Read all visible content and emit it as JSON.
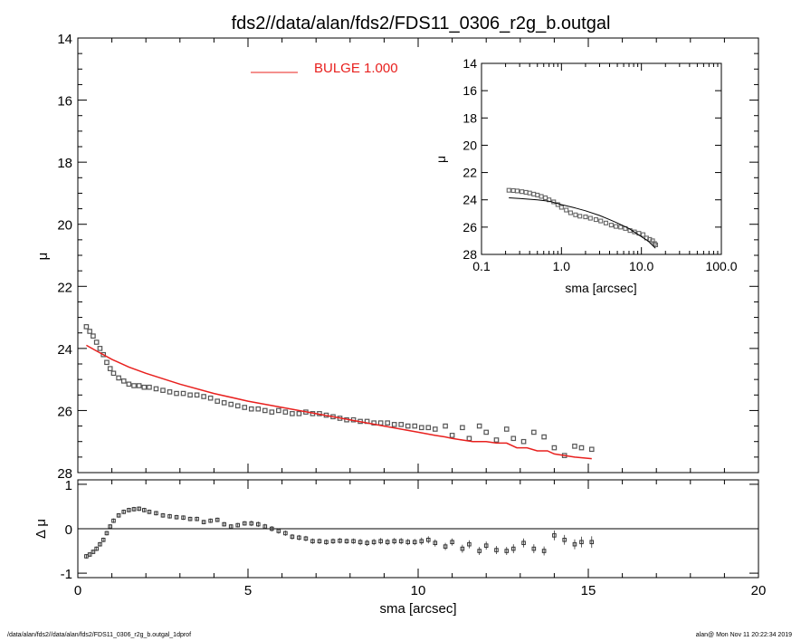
{
  "title": "fds2//data/alan/fds2/FDS11_0306_r2g_b.outgal",
  "footer_left": "/data/alan/fds2//data/alan/fds2/FDS11_0306_r2g_b.outgal_1dprof",
  "footer_right": "alan@  Mon Nov 11 20:22:34 2019",
  "colors": {
    "model": "#e8201e",
    "data": "#555555",
    "axes": "#000000"
  },
  "chart_data": [
    {
      "panel": "main",
      "type": "scatter",
      "xlabel": "sma [arcsec]",
      "ylabel": "μ",
      "xlim": [
        0,
        20
      ],
      "ylim": [
        28,
        14
      ],
      "xticks": [
        "0",
        "5",
        "10",
        "15",
        "20"
      ],
      "yticks": [
        "14",
        "16",
        "18",
        "20",
        "22",
        "24",
        "26",
        "28"
      ],
      "legend": {
        "label": "BULGE  1.000",
        "placement": "top-left"
      },
      "series": [
        {
          "kind": "points",
          "x": [
            0.25,
            0.35,
            0.45,
            0.55,
            0.65,
            0.75,
            0.85,
            0.95,
            1.05,
            1.2,
            1.35,
            1.5,
            1.65,
            1.8,
            1.95,
            2.1,
            2.3,
            2.5,
            2.7,
            2.9,
            3.1,
            3.3,
            3.5,
            3.7,
            3.9,
            4.1,
            4.3,
            4.5,
            4.7,
            4.9,
            5.1,
            5.3,
            5.5,
            5.7,
            5.9,
            6.1,
            6.3,
            6.5,
            6.7,
            6.9,
            7.1,
            7.3,
            7.5,
            7.7,
            7.9,
            8.1,
            8.3,
            8.5,
            8.7,
            8.9,
            9.1,
            9.3,
            9.5,
            9.7,
            9.9,
            10.1,
            10.3,
            10.5,
            10.8,
            11.0,
            11.3,
            11.5,
            11.8,
            12.0,
            12.3,
            12.6,
            12.8,
            13.1,
            13.4,
            13.7,
            14.0,
            14.3,
            14.6,
            14.8,
            15.1
          ],
          "y": [
            23.3,
            23.45,
            23.6,
            23.8,
            24.0,
            24.2,
            24.45,
            24.65,
            24.8,
            24.95,
            25.05,
            25.15,
            25.2,
            25.2,
            25.25,
            25.25,
            25.3,
            25.35,
            25.4,
            25.45,
            25.45,
            25.5,
            25.5,
            25.55,
            25.6,
            25.7,
            25.75,
            25.8,
            25.85,
            25.9,
            25.95,
            25.95,
            26.0,
            26.05,
            26.0,
            26.05,
            26.1,
            26.1,
            26.05,
            26.1,
            26.1,
            26.15,
            26.2,
            26.25,
            26.3,
            26.3,
            26.35,
            26.35,
            26.4,
            26.4,
            26.4,
            26.45,
            26.45,
            26.5,
            26.5,
            26.55,
            26.55,
            26.6,
            26.5,
            26.8,
            26.55,
            26.9,
            26.5,
            26.7,
            26.95,
            26.6,
            26.9,
            27.0,
            26.7,
            26.85,
            27.2,
            27.45,
            27.15,
            27.2,
            27.25
          ]
        },
        {
          "kind": "line",
          "name": "BULGE  1.000",
          "x": [
            0.25,
            0.5,
            1.0,
            1.5,
            2.0,
            3.0,
            4.0,
            5.0,
            6.0,
            7.0,
            8.0,
            9.0,
            10.0,
            10.5,
            10.8,
            11.0,
            11.3,
            11.6,
            12.0,
            12.3,
            12.6,
            12.9,
            13.2,
            13.5,
            13.8,
            14.0,
            14.3,
            14.6,
            15.1
          ],
          "y": [
            23.9,
            24.05,
            24.35,
            24.6,
            24.8,
            25.15,
            25.45,
            25.7,
            25.9,
            26.1,
            26.3,
            26.5,
            26.7,
            26.8,
            26.85,
            26.9,
            26.95,
            27.0,
            27.0,
            27.05,
            27.05,
            27.2,
            27.2,
            27.3,
            27.3,
            27.4,
            27.45,
            27.5,
            27.55
          ]
        }
      ]
    },
    {
      "panel": "residual",
      "type": "scatter",
      "xlabel": "sma [arcsec]",
      "ylabel": "Δ μ",
      "xlim": [
        0,
        20
      ],
      "ylim": [
        -1.1,
        1.1
      ],
      "xticks": [
        "0",
        "5",
        "10",
        "15",
        "20"
      ],
      "yticks": [
        "1",
        "0",
        "-1"
      ],
      "series": [
        {
          "kind": "points_with_errors",
          "x": [
            0.25,
            0.35,
            0.45,
            0.55,
            0.65,
            0.75,
            0.85,
            0.95,
            1.05,
            1.2,
            1.35,
            1.5,
            1.65,
            1.8,
            1.95,
            2.1,
            2.3,
            2.5,
            2.7,
            2.9,
            3.1,
            3.3,
            3.5,
            3.7,
            3.9,
            4.1,
            4.3,
            4.5,
            4.7,
            4.9,
            5.1,
            5.3,
            5.5,
            5.7,
            5.9,
            6.1,
            6.3,
            6.5,
            6.7,
            6.9,
            7.1,
            7.3,
            7.5,
            7.7,
            7.9,
            8.1,
            8.3,
            8.5,
            8.7,
            8.9,
            9.1,
            9.3,
            9.5,
            9.7,
            9.9,
            10.1,
            10.3,
            10.5,
            10.8,
            11.0,
            11.3,
            11.5,
            11.8,
            12.0,
            12.3,
            12.6,
            12.8,
            13.1,
            13.4,
            13.7,
            14.0,
            14.3,
            14.6,
            14.8,
            15.1
          ],
          "y": [
            -0.62,
            -0.58,
            -0.52,
            -0.45,
            -0.35,
            -0.25,
            -0.1,
            0.05,
            0.18,
            0.3,
            0.38,
            0.42,
            0.44,
            0.45,
            0.42,
            0.38,
            0.35,
            0.3,
            0.28,
            0.26,
            0.25,
            0.22,
            0.22,
            0.15,
            0.18,
            0.2,
            0.1,
            0.05,
            0.08,
            0.12,
            0.12,
            0.1,
            0.05,
            0.0,
            -0.05,
            -0.1,
            -0.18,
            -0.2,
            -0.22,
            -0.28,
            -0.28,
            -0.3,
            -0.28,
            -0.27,
            -0.28,
            -0.28,
            -0.3,
            -0.32,
            -0.3,
            -0.28,
            -0.3,
            -0.28,
            -0.28,
            -0.3,
            -0.3,
            -0.28,
            -0.25,
            -0.32,
            -0.4,
            -0.3,
            -0.45,
            -0.35,
            -0.5,
            -0.38,
            -0.48,
            -0.5,
            -0.45,
            -0.32,
            -0.45,
            -0.5,
            -0.15,
            -0.25,
            -0.35,
            -0.3,
            -0.3
          ],
          "err": [
            0.02,
            0.02,
            0.02,
            0.02,
            0.02,
            0.02,
            0.02,
            0.02,
            0.02,
            0.02,
            0.02,
            0.02,
            0.02,
            0.02,
            0.02,
            0.02,
            0.02,
            0.02,
            0.02,
            0.02,
            0.02,
            0.02,
            0.02,
            0.02,
            0.02,
            0.02,
            0.02,
            0.02,
            0.02,
            0.02,
            0.03,
            0.03,
            0.03,
            0.03,
            0.03,
            0.03,
            0.03,
            0.03,
            0.03,
            0.03,
            0.03,
            0.03,
            0.03,
            0.03,
            0.03,
            0.03,
            0.04,
            0.04,
            0.04,
            0.04,
            0.04,
            0.04,
            0.04,
            0.04,
            0.04,
            0.05,
            0.05,
            0.05,
            0.05,
            0.05,
            0.06,
            0.06,
            0.06,
            0.06,
            0.06,
            0.06,
            0.07,
            0.07,
            0.07,
            0.07,
            0.08,
            0.08,
            0.08,
            0.09,
            0.1
          ]
        }
      ]
    },
    {
      "panel": "inset",
      "type": "scatter",
      "xlabel": "sma [arcsec]",
      "ylabel": "μ",
      "xscale": "log",
      "xlim": [
        0.1,
        100.0
      ],
      "ylim": [
        28,
        14
      ],
      "xticks": [
        "0.1",
        "1.0",
        "10.0",
        "100.0"
      ],
      "yticks": [
        "14",
        "16",
        "18",
        "20",
        "22",
        "24",
        "26",
        "28"
      ],
      "series": [
        {
          "kind": "points",
          "x": [
            0.22,
            0.25,
            0.28,
            0.32,
            0.36,
            0.4,
            0.45,
            0.5,
            0.56,
            0.63,
            0.7,
            0.8,
            0.9,
            1.0,
            1.15,
            1.3,
            1.5,
            1.7,
            2.0,
            2.3,
            2.7,
            3.1,
            3.6,
            4.2,
            4.8,
            5.5,
            6.3,
            7.2,
            8.2,
            9.3,
            10.5,
            11.6,
            12.7,
            13.8,
            14.6,
            15.1
          ],
          "y": [
            23.3,
            23.32,
            23.35,
            23.4,
            23.45,
            23.5,
            23.58,
            23.65,
            23.75,
            23.85,
            24.0,
            24.15,
            24.35,
            24.55,
            24.75,
            24.95,
            25.1,
            25.2,
            25.25,
            25.35,
            25.45,
            25.55,
            25.7,
            25.85,
            25.95,
            26.0,
            26.1,
            26.25,
            26.35,
            26.45,
            26.55,
            26.8,
            26.9,
            27.0,
            27.2,
            27.3
          ]
        },
        {
          "kind": "line",
          "x": [
            0.22,
            0.3,
            0.5,
            0.7,
            1.0,
            1.5,
            2.0,
            3.0,
            4.0,
            5.0,
            7.0,
            10.0,
            12.0,
            15.0
          ],
          "y": [
            23.85,
            23.9,
            24.0,
            24.1,
            24.35,
            24.6,
            24.8,
            25.15,
            25.45,
            25.7,
            26.1,
            26.7,
            27.0,
            27.55
          ]
        }
      ]
    }
  ]
}
